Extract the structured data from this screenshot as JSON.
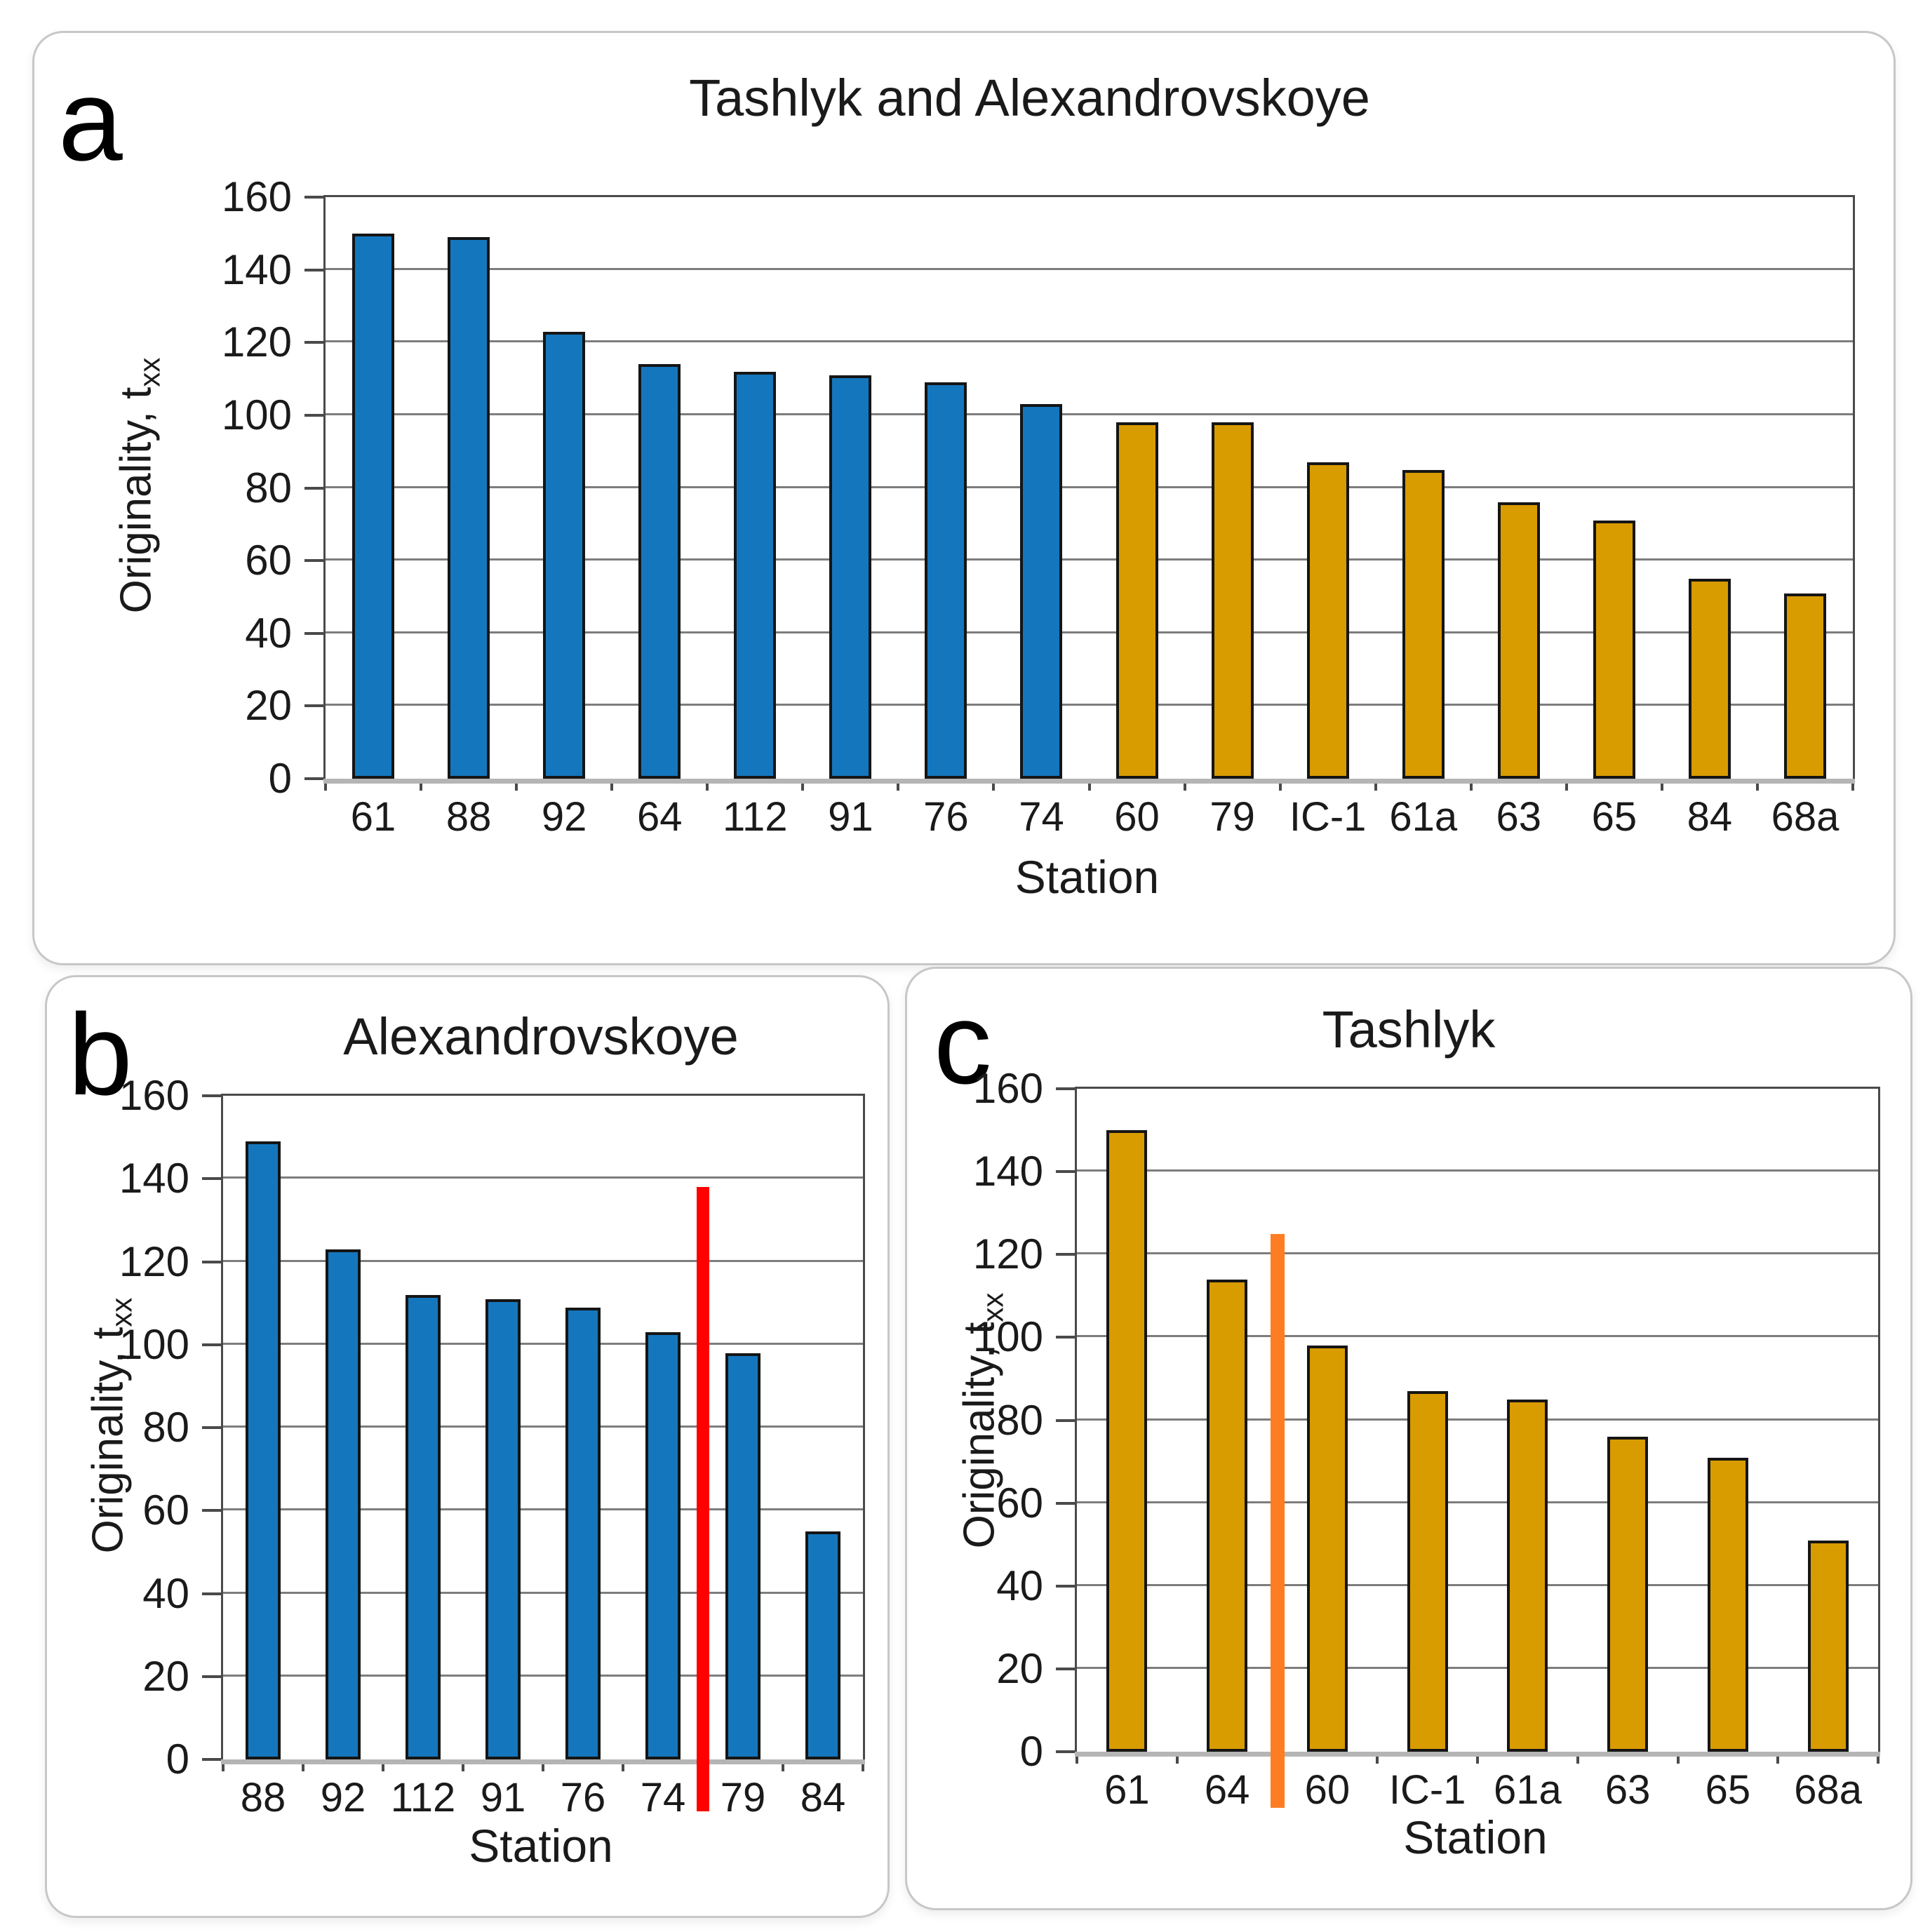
{
  "figure": {
    "background": "#ffffff",
    "panel_letters": [
      "a",
      "b",
      "c"
    ]
  },
  "chart_data": [
    {
      "type": "bar",
      "panel_letter": "a",
      "title": "Tashlyk and Alexandrovskoye",
      "xlabel": "Station",
      "ylabel": "Originality, t",
      "ylabel_subscript": "xx",
      "ylim": [
        0,
        160
      ],
      "yticks": [
        0,
        20,
        40,
        60,
        80,
        100,
        120,
        140,
        160
      ],
      "grid": true,
      "legend": "none",
      "categories": [
        "61",
        "88",
        "92",
        "64",
        "112",
        "91",
        "76",
        "74",
        "60",
        "79",
        "IC-1",
        "61a",
        "63",
        "65",
        "84",
        "68a"
      ],
      "values": [
        150,
        149,
        123,
        114,
        112,
        111,
        109,
        103,
        98,
        98,
        87,
        85,
        76,
        71,
        55,
        51
      ],
      "bar_colors": [
        "#1477BE",
        "#1477BE",
        "#1477BE",
        "#1477BE",
        "#1477BE",
        "#1477BE",
        "#1477BE",
        "#1477BE",
        "#D89B00",
        "#D89B00",
        "#D89B00",
        "#D89B00",
        "#D89B00",
        "#D89B00",
        "#D89B00",
        "#D89B00"
      ],
      "marker_line": null
    },
    {
      "type": "bar",
      "panel_letter": "b",
      "title": "Alexandrovskoye",
      "xlabel": "Station",
      "ylabel": "Originality, t",
      "ylabel_subscript": "xx",
      "ylim": [
        0,
        160
      ],
      "yticks": [
        0,
        20,
        40,
        60,
        80,
        100,
        120,
        140,
        160
      ],
      "grid": true,
      "legend": "none",
      "categories": [
        "88",
        "92",
        "112",
        "91",
        "76",
        "74",
        "79",
        "84"
      ],
      "values": [
        149,
        123,
        112,
        111,
        109,
        103,
        98,
        55
      ],
      "bar_color": "#1477BE",
      "marker_line": {
        "color": "#FF0000",
        "after_category": "74",
        "top_value": 138,
        "extends_below_axis": true
      }
    },
    {
      "type": "bar",
      "panel_letter": "c",
      "title": "Tashlyk",
      "xlabel": "Station",
      "ylabel": "Originality, t",
      "ylabel_subscript": "xx",
      "ylim": [
        0,
        160
      ],
      "yticks": [
        0,
        20,
        40,
        60,
        80,
        100,
        120,
        140,
        160
      ],
      "grid": true,
      "legend": "none",
      "categories": [
        "61",
        "64",
        "60",
        "IC-1",
        "61a",
        "63",
        "65",
        "68a"
      ],
      "values": [
        150,
        114,
        98,
        87,
        85,
        76,
        71,
        51
      ],
      "bar_color": "#D89B00",
      "marker_line": {
        "color": "#FF7D22",
        "after_category": "64",
        "top_value": 125,
        "extends_below_axis": true
      }
    }
  ]
}
